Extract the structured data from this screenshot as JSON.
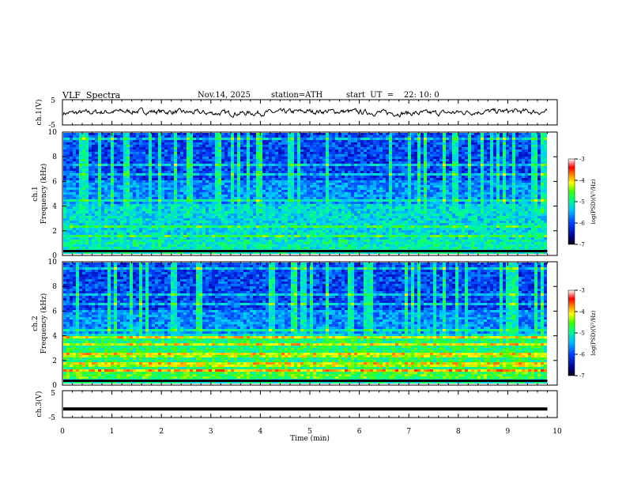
{
  "header": {
    "title": "VLF  Spectra",
    "date": "Nov.14, 2025",
    "station": "station=ATH",
    "start": "start  UT  =    22: 10: 0"
  },
  "chart_data": [
    {
      "type": "line",
      "name": "ch1-waveform",
      "ylabel": "ch.1(V)",
      "ylim": [
        -5,
        5
      ],
      "yticks": [
        "5",
        "-5"
      ],
      "x_range_min": [
        0,
        9.8
      ]
    },
    {
      "type": "heatmap",
      "name": "ch1-spectrogram",
      "ylabel_line1": "ch.1",
      "ylabel_line2": "Frequency  (kHz)",
      "ylim": [
        0,
        10
      ],
      "yticks": [
        "0",
        "2",
        "4",
        "6",
        "8",
        "10"
      ],
      "colorbar": {
        "label": "log(PSD)(V²/Hz)",
        "range": [
          -7,
          -3
        ],
        "ticks": [
          "-3",
          "-4",
          "-5",
          "-6",
          "-7"
        ]
      }
    },
    {
      "type": "heatmap",
      "name": "ch2-spectrogram",
      "ylabel_line1": "ch.2",
      "ylabel_line2": "Frequency  (kHz)",
      "ylim": [
        0,
        10
      ],
      "yticks": [
        "0",
        "2",
        "4",
        "6",
        "8",
        "10"
      ],
      "colorbar": {
        "label": "log(PSD)(V²/Hz)",
        "range": [
          -7,
          -3
        ],
        "ticks": [
          "-3",
          "-4",
          "-5",
          "-6",
          "-7"
        ]
      }
    },
    {
      "type": "line",
      "name": "ch3-waveform",
      "ylabel": "ch.3(V)",
      "ylim": [
        -5,
        5
      ],
      "yticks": [
        "5",
        "-5"
      ],
      "level": -1.8
    }
  ],
  "xaxis": {
    "label": "Time  (min)",
    "range": [
      0,
      10
    ],
    "ticks": [
      "0",
      "1",
      "2",
      "3",
      "4",
      "5",
      "6",
      "7",
      "8",
      "9",
      "10"
    ]
  },
  "colors": {
    "ink": "#000000",
    "cmapLow": "#000080",
    "cmapHigh": "#ff0000"
  }
}
